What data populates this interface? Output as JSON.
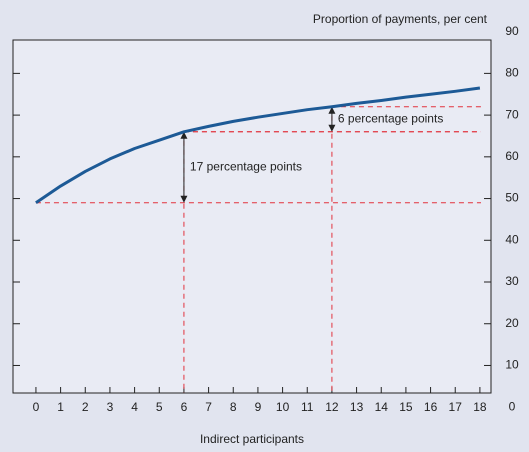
{
  "chart_data": {
    "type": "line",
    "y_axis_label": "Proportion of payments, per cent",
    "x_axis_label": "Indirect participants",
    "x": [
      0,
      1,
      2,
      3,
      4,
      5,
      6,
      7,
      8,
      9,
      10,
      11,
      12,
      13,
      14,
      15,
      16,
      17,
      18
    ],
    "series": [
      {
        "name": null,
        "color": "#1d5a96",
        "values": [
          49,
          53,
          56.5,
          59.5,
          62,
          64,
          66,
          67.3,
          68.5,
          69.5,
          70.4,
          71.3,
          72,
          72.8,
          73.5,
          74.3,
          75,
          75.7,
          76.5
        ]
      }
    ],
    "annotations": [
      {
        "text": "17 percentage points",
        "x": [
          0,
          6
        ]
      },
      {
        "text": "6 percentage points",
        "x": [
          6,
          12
        ]
      }
    ],
    "reference_color": "#e2323c",
    "xlim": [
      -0.93,
      18.45
    ],
    "xticks": [
      0,
      1,
      2,
      3,
      4,
      5,
      6,
      7,
      8,
      9,
      10,
      11,
      12,
      13,
      14,
      15,
      16,
      17,
      18
    ],
    "ylim": [
      3.4,
      88
    ],
    "yticks": [
      0,
      10,
      20,
      30,
      40,
      50,
      60,
      70,
      80,
      90
    ]
  }
}
